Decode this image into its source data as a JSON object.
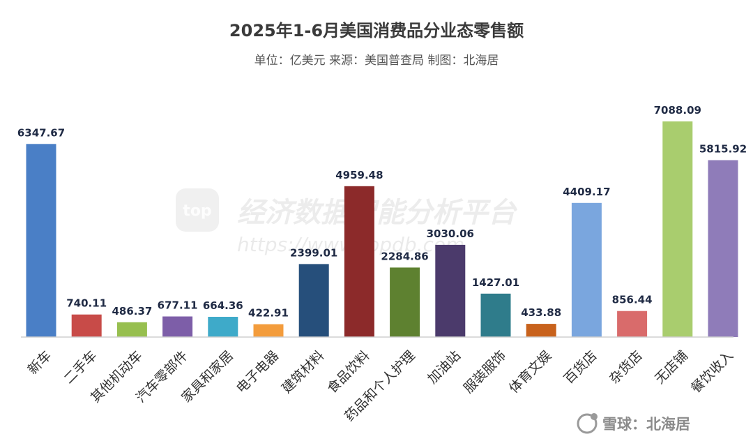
{
  "chart_data": {
    "type": "bar",
    "title": "2025年1-6月美国消费品分业态零售额",
    "subtitle": "单位：亿美元 来源：美国普查局 制图：北海居",
    "categories": [
      "新车",
      "二手车",
      "其他机动车",
      "汽车零部件",
      "家具和家居",
      "电子电器",
      "建筑材料",
      "食品饮料",
      "药品和个人护理",
      "加油站",
      "服装服饰",
      "体育文娱",
      "百货店",
      "杂货店",
      "无店铺",
      "餐饮收入"
    ],
    "values": [
      6347.67,
      740.11,
      486.37,
      677.11,
      664.36,
      422.91,
      2399.01,
      4959.48,
      2284.86,
      3030.06,
      1427.01,
      433.88,
      4409.17,
      856.44,
      7088.09,
      5815.92
    ],
    "value_labels": [
      "6347.67",
      "740.11",
      "486.37",
      "677.11",
      "664.36",
      "422.91",
      "2399.01",
      "4959.48",
      "2284.86",
      "3030.06",
      "1427.01",
      "433.88",
      "4409.17",
      "856.44",
      "7088.09",
      "5815.92"
    ],
    "colors": [
      "#4a7fc6",
      "#c84b48",
      "#97bf4f",
      "#7d5ea8",
      "#3eaac9",
      "#f39c3c",
      "#264f7b",
      "#8c2a2a",
      "#5e8130",
      "#4b3a6b",
      "#2f7c8b",
      "#c8621c",
      "#7aa6de",
      "#d96b6b",
      "#a9cd6e",
      "#8f7cb9"
    ],
    "ylim": [
      0,
      7800
    ],
    "grid": false,
    "legend": "none"
  },
  "watermark": {
    "logo_text": "top",
    "text": "经济数据智能分析平台",
    "url": "https://www.topdb.com"
  },
  "footer": {
    "brand_text": "雪球：北海居"
  }
}
